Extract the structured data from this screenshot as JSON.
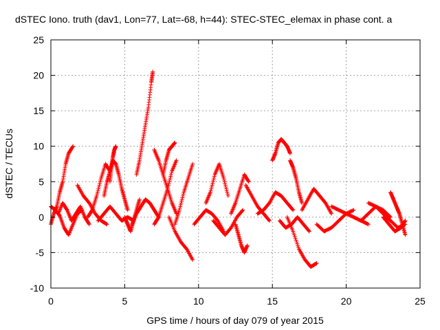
{
  "chart_data": {
    "type": "scatter",
    "title": "dSTEC Iono. truth (dav1, Lon=77, Lat=-68, h=44): STEC-STEC_elemax in phase cont. a",
    "xlabel": "GPS time / hours of day 079 of year 2015",
    "ylabel": "dSTEC  / TECUs",
    "xlim": [
      0,
      25
    ],
    "ylim": [
      -10,
      25
    ],
    "xticks": [
      0,
      5,
      10,
      15,
      20,
      25
    ],
    "yticks": [
      -10,
      -5,
      0,
      5,
      10,
      15,
      20,
      25
    ],
    "xtick_labels": [
      "0",
      "5",
      "10",
      "15",
      "20",
      "25"
    ],
    "ytick_labels": [
      "-10",
      "-5",
      "0",
      "5",
      "10",
      "15",
      "20",
      "25"
    ],
    "grid": true,
    "marker": "plus",
    "color": "#ff0000",
    "series": [
      {
        "name": "",
        "tracks": [
          {
            "x": [
              0.0,
              0.2,
              0.4,
              0.6,
              0.8,
              1.0,
              1.2,
              1.5
            ],
            "y": [
              -1.0,
              0.5,
              1.5,
              3.5,
              5.0,
              7.5,
              9.0,
              10.0
            ]
          },
          {
            "x": [
              0.0,
              0.3,
              0.6,
              0.9,
              1.2,
              1.5,
              1.8,
              2.1
            ],
            "y": [
              1.5,
              1.0,
              0.2,
              -1.5,
              -2.5,
              -1.0,
              0.5,
              1.0
            ]
          },
          {
            "x": [
              0.5,
              0.8,
              1.1,
              1.4,
              1.7,
              2.0,
              2.3,
              2.6
            ],
            "y": [
              0.5,
              2.0,
              1.0,
              -0.5,
              0.5,
              1.5,
              0.0,
              -1.0
            ]
          },
          {
            "x": [
              1.8,
              2.2,
              2.6,
              3.0,
              3.4,
              3.8
            ],
            "y": [
              4.5,
              3.0,
              2.0,
              0.5,
              -0.5,
              -1.0
            ]
          },
          {
            "x": [
              2.5,
              2.8,
              3.1,
              3.4,
              3.7,
              4.0
            ],
            "y": [
              0.0,
              1.0,
              3.0,
              5.5,
              7.5,
              6.5
            ]
          },
          {
            "x": [
              3.6,
              3.8,
              4.0,
              4.2,
              4.4,
              4.6,
              4.8,
              5.0,
              5.2
            ],
            "y": [
              3.0,
              5.0,
              6.5,
              8.0,
              7.5,
              6.0,
              4.0,
              2.5,
              1.0
            ]
          },
          {
            "x": [
              3.2,
              3.6,
              4.0,
              4.4,
              4.8,
              5.2,
              5.6
            ],
            "y": [
              -0.5,
              0.5,
              1.5,
              0.5,
              -0.5,
              0.0,
              -0.5
            ]
          },
          {
            "x": [
              4.0,
              4.1,
              4.2,
              4.3,
              4.4
            ],
            "y": [
              5.0,
              7.0,
              8.5,
              9.5,
              10.0
            ]
          },
          {
            "x": [
              5.0,
              5.2,
              5.4,
              5.6,
              5.8,
              6.0
            ],
            "y": [
              0.0,
              -1.0,
              -2.0,
              -0.5,
              1.0,
              2.5
            ]
          },
          {
            "x": [
              5.8,
              6.0,
              6.2,
              6.4,
              6.6,
              6.8,
              6.9
            ],
            "y": [
              6.0,
              8.0,
              10.5,
              13.0,
              15.5,
              19.0,
              20.5
            ]
          },
          {
            "x": [
              5.5,
              5.8,
              6.1,
              6.4,
              6.7,
              7.0,
              7.3
            ],
            "y": [
              -1.0,
              0.5,
              1.5,
              2.5,
              2.0,
              1.0,
              0.0
            ]
          },
          {
            "x": [
              7.0,
              7.3,
              7.6,
              7.9,
              8.2,
              8.5
            ],
            "y": [
              9.5,
              8.0,
              6.0,
              4.0,
              2.0,
              0.5
            ]
          },
          {
            "x": [
              7.0,
              7.3,
              7.6,
              7.9,
              8.2,
              8.5
            ],
            "y": [
              -1.0,
              0.0,
              2.0,
              4.0,
              6.5,
              8.0
            ]
          },
          {
            "x": [
              7.6,
              7.8,
              8.0,
              8.2,
              8.4
            ],
            "y": [
              6.0,
              8.0,
              9.5,
              10.0,
              10.5
            ]
          },
          {
            "x": [
              8.0,
              8.4,
              8.8,
              9.2,
              9.6
            ],
            "y": [
              0.0,
              -2.0,
              -3.5,
              -4.5,
              -6.0
            ]
          },
          {
            "x": [
              8.4,
              8.7,
              9.0,
              9.3,
              9.6
            ],
            "y": [
              -1.0,
              1.0,
              3.5,
              5.5,
              7.5
            ]
          },
          {
            "x": [
              9.7,
              10.1,
              10.5,
              10.9,
              11.3,
              11.7
            ],
            "y": [
              -1.0,
              0.0,
              1.0,
              0.5,
              -0.5,
              -2.0
            ]
          },
          {
            "x": [
              10.5,
              10.8,
              11.1,
              11.4,
              11.7,
              12.0
            ],
            "y": [
              2.0,
              3.5,
              6.0,
              7.5,
              5.5,
              3.0
            ]
          },
          {
            "x": [
              11.0,
              11.4,
              11.8,
              12.2,
              12.6,
              13.0
            ],
            "y": [
              -0.5,
              -1.5,
              -2.5,
              -1.5,
              0.0,
              1.0
            ]
          },
          {
            "x": [
              12.2,
              12.5,
              12.8,
              13.1,
              13.4
            ],
            "y": [
              0.5,
              2.0,
              4.0,
              6.0,
              5.0
            ]
          },
          {
            "x": [
              12.5,
              12.7,
              12.9,
              13.1,
              13.3
            ],
            "y": [
              -1.0,
              -2.5,
              -4.0,
              -5.0,
              -4.0
            ]
          },
          {
            "x": [
              13.2,
              13.6,
              14.0,
              14.4,
              14.8
            ],
            "y": [
              4.5,
              3.0,
              1.5,
              0.5,
              -0.5
            ]
          },
          {
            "x": [
              14.0,
              14.4,
              14.8,
              15.2,
              15.6,
              16.0,
              16.4
            ],
            "y": [
              0.5,
              1.0,
              2.0,
              3.5,
              3.0,
              2.0,
              1.0
            ]
          },
          {
            "x": [
              15.0,
              15.2,
              15.4,
              15.6,
              15.8,
              16.0,
              16.2
            ],
            "y": [
              8.0,
              9.0,
              10.5,
              11.0,
              10.5,
              10.0,
              9.0
            ]
          },
          {
            "x": [
              16.2,
              16.4,
              16.6,
              16.8,
              17.0
            ],
            "y": [
              8.0,
              7.0,
              5.5,
              3.5,
              2.0
            ]
          },
          {
            "x": [
              16.0,
              16.4,
              16.8,
              17.2,
              17.6,
              18.0
            ],
            "y": [
              0.0,
              -2.0,
              -4.5,
              -6.0,
              -7.0,
              -6.5
            ]
          },
          {
            "x": [
              15.5,
              15.9,
              16.3,
              16.7,
              17.1,
              17.5
            ],
            "y": [
              -0.5,
              -1.5,
              -1.0,
              0.0,
              -1.0,
              -2.0
            ]
          },
          {
            "x": [
              17.0,
              17.4,
              17.8,
              18.2,
              18.6,
              19.0
            ],
            "y": [
              1.0,
              2.5,
              4.0,
              3.0,
              2.0,
              0.5
            ]
          },
          {
            "x": [
              18.0,
              18.5,
              19.0,
              19.5,
              20.0,
              20.5
            ],
            "y": [
              -1.0,
              -2.0,
              -1.5,
              -0.5,
              0.5,
              1.0
            ]
          },
          {
            "x": [
              19.0,
              19.5,
              20.0,
              20.5,
              21.0,
              21.5
            ],
            "y": [
              1.5,
              1.0,
              0.5,
              0.0,
              -0.5,
              -1.0
            ]
          },
          {
            "x": [
              21.0,
              21.5,
              22.0,
              22.5,
              23.0
            ],
            "y": [
              -0.5,
              0.5,
              1.5,
              1.0,
              0.0
            ]
          },
          {
            "x": [
              21.5,
              22.0,
              22.5,
              23.0,
              23.5,
              24.0
            ],
            "y": [
              2.0,
              1.5,
              0.5,
              -0.5,
              -1.5,
              -1.0
            ]
          },
          {
            "x": [
              23.0,
              23.2,
              23.4,
              23.6,
              23.8,
              24.0
            ],
            "y": [
              3.5,
              2.5,
              1.5,
              0.5,
              -1.0,
              -2.5
            ]
          },
          {
            "x": [
              22.5,
              22.9,
              23.3,
              23.7,
              24.0
            ],
            "y": [
              0.0,
              -1.0,
              -2.0,
              -1.5,
              -0.5
            ]
          }
        ]
      }
    ]
  }
}
